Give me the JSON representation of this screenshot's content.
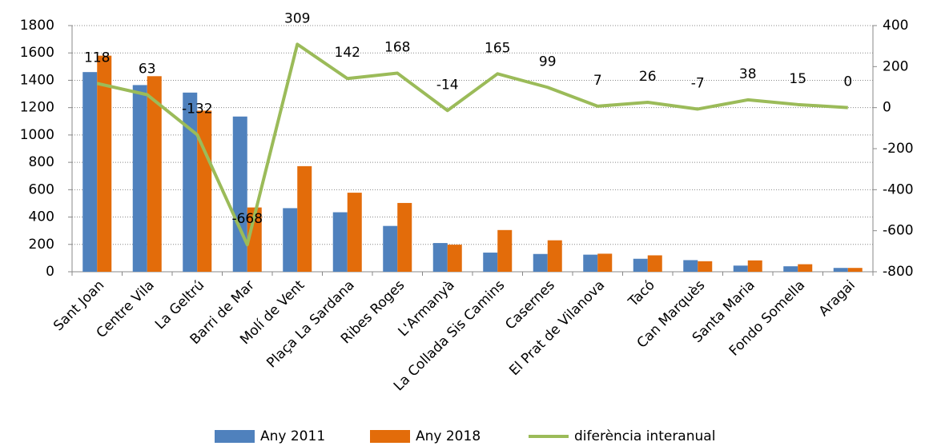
{
  "chart_data": {
    "type": "bar-line",
    "categories": [
      "Sant Joan",
      "Centre Vila",
      "La Geltrú",
      "Barri de Mar",
      "Molí de Vent",
      "Plaça La Sardana",
      "Ribes Roges",
      "L'Armanyà",
      "La Collada Sis Camins",
      "Casernes",
      "El Prat de Vilanova",
      "Tacó",
      "Can Marquès",
      "Santa Maria",
      "Fondo Somella",
      "Aragai"
    ],
    "series": [
      {
        "name": "Any 2011",
        "color": "#4f81bd",
        "type": "bar",
        "values": [
          1460,
          1365,
          1310,
          1135,
          465,
          435,
          335,
          210,
          140,
          130,
          125,
          95,
          85,
          45,
          40,
          28
        ]
      },
      {
        "name": "Any 2018",
        "color": "#e36c0a",
        "type": "bar",
        "values": [
          1580,
          1430,
          1178,
          470,
          772,
          578,
          503,
          198,
          305,
          230,
          132,
          120,
          77,
          83,
          55,
          28
        ]
      },
      {
        "name": "diferència interanual",
        "color": "#9bbb59",
        "type": "line",
        "axis": "y2",
        "values": [
          118,
          63,
          -132,
          -668,
          309,
          142,
          168,
          -14,
          165,
          99,
          7,
          26,
          -7,
          38,
          15,
          0
        ]
      }
    ],
    "negative_label_color": "#ff0000",
    "ylim": [
      0,
      1800
    ],
    "yticks": [
      0,
      200,
      400,
      600,
      800,
      1000,
      1200,
      1400,
      1600,
      1800
    ],
    "y2lim": [
      -800,
      400
    ],
    "y2ticks": [
      -800,
      -600,
      -400,
      -200,
      0,
      200,
      400
    ],
    "grid": true,
    "legend": "bottom"
  }
}
